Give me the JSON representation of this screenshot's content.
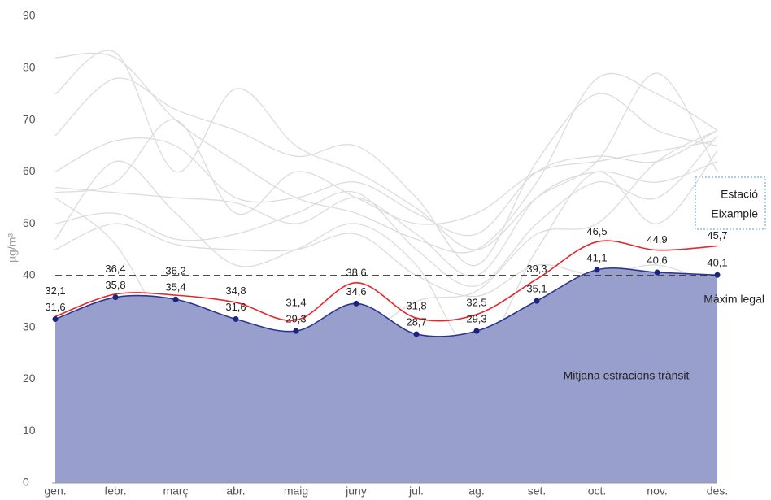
{
  "chart_data": {
    "type": "line",
    "y_label": "µg/m³",
    "categories": [
      "gen.",
      "febr.",
      "març",
      "abr.",
      "maig",
      "juny",
      "jul.",
      "ag.",
      "set.",
      "oct.",
      "nov.",
      "des."
    ],
    "ylim": [
      0,
      90
    ],
    "yticks": [
      0,
      10,
      20,
      30,
      40,
      50,
      60,
      70,
      80,
      90
    ],
    "series": [
      {
        "name": "Estació Eixample",
        "color": "#e8262c",
        "values": [
          32.1,
          36.4,
          36.2,
          34.8,
          31.4,
          38.6,
          31.8,
          32.5,
          39.3,
          46.5,
          44.9,
          45.7
        ],
        "value_labels": [
          "32,1",
          "36,4",
          "36,2",
          "34,8",
          "31,4",
          "38,6",
          "31,8",
          "32,5",
          "39,3",
          "46,5",
          "44,9",
          "45,7"
        ]
      },
      {
        "name": "Mitjana estracions trànsit",
        "color": "#2b3690",
        "fill": "#999fcc",
        "values": [
          31.6,
          35.8,
          35.4,
          31.6,
          29.3,
          34.6,
          28.7,
          29.3,
          35.1,
          41.1,
          40.6,
          40.1
        ],
        "value_labels": [
          "31,6",
          "35,8",
          "35,4",
          "31,6",
          "29,3",
          "34,6",
          "28,7",
          "29,3",
          "35,1",
          "41,1",
          "40,6",
          "40,1"
        ]
      }
    ],
    "other_series_color": "#dcdcdc",
    "other_series": [
      [
        82,
        82,
        70,
        62,
        55,
        52,
        47,
        45,
        58,
        78,
        75,
        68
      ],
      [
        75,
        83,
        60,
        76,
        65,
        60,
        53,
        45,
        55,
        62,
        79,
        60
      ],
      [
        67,
        78,
        72,
        68,
        63,
        65,
        55,
        42,
        62,
        75,
        68,
        65
      ],
      [
        60,
        66,
        65,
        55,
        55,
        58,
        52,
        48,
        60,
        63,
        62,
        68
      ],
      [
        57,
        56,
        55,
        54,
        50,
        55,
        48,
        40,
        55,
        60,
        58,
        62
      ],
      [
        50,
        52,
        47,
        48,
        52,
        56,
        45,
        38,
        50,
        58,
        55,
        67
      ],
      [
        47,
        62,
        52,
        42,
        45,
        50,
        42,
        25,
        45,
        60,
        50,
        64
      ],
      [
        55,
        46,
        27,
        19,
        22,
        27,
        35,
        37,
        48,
        50,
        62,
        68
      ],
      [
        56,
        58,
        70,
        52,
        60,
        55,
        50,
        52,
        60,
        62,
        64,
        66
      ],
      [
        45,
        50,
        46,
        45,
        45,
        48,
        40,
        36,
        42,
        40,
        42,
        38
      ]
    ],
    "reference_line": {
      "value": 40,
      "label": "Màxim legal"
    }
  }
}
